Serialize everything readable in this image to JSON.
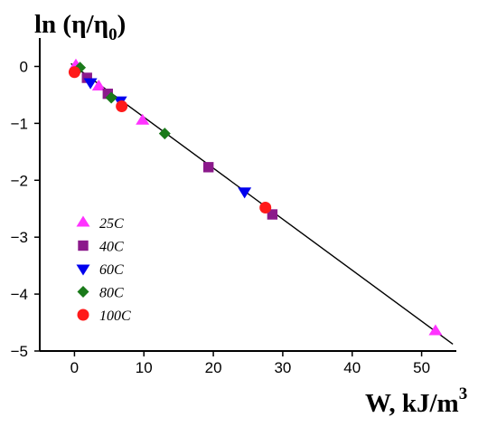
{
  "chart_data": {
    "type": "scatter",
    "title": "",
    "ylabel": {
      "base": "ln (η/η",
      "sub": "0",
      "close": ")"
    },
    "xlabel": {
      "base": "W, kJ/m",
      "sup": "3"
    },
    "xlim": [
      -5,
      55
    ],
    "ylim": [
      -5,
      0.5
    ],
    "xticks": [
      0,
      10,
      20,
      30,
      40,
      50
    ],
    "yticks": [
      0,
      -1,
      -2,
      -3,
      -4,
      -5
    ],
    "xtick_labels": [
      "0",
      "10",
      "20",
      "30",
      "40",
      "50"
    ],
    "ytick_labels": [
      "0",
      "−1",
      "−2",
      "−3",
      "−4",
      "−5"
    ],
    "grid": false,
    "legend_position": "left-middle",
    "fit_line": {
      "x": [
        -0.5,
        54.5
      ],
      "y": [
        0.05,
        -4.88
      ],
      "color": "#000000"
    },
    "series": [
      {
        "name": "25C",
        "marker": "triangle-up",
        "color": "#ff33ff",
        "points": [
          [
            0.2,
            0.02
          ],
          [
            3.5,
            -0.35
          ],
          [
            9.8,
            -0.95
          ],
          [
            52.0,
            -4.65
          ]
        ]
      },
      {
        "name": "40C",
        "marker": "square",
        "color": "#8b1a8b",
        "points": [
          [
            1.8,
            -0.2
          ],
          [
            4.8,
            -0.48
          ],
          [
            19.3,
            -1.77
          ],
          [
            28.5,
            -2.6
          ]
        ]
      },
      {
        "name": "60C",
        "marker": "triangle-down",
        "color": "#0000ee",
        "points": [
          [
            2.3,
            -0.28
          ],
          [
            6.6,
            -0.6
          ],
          [
            24.5,
            -2.2
          ]
        ]
      },
      {
        "name": "80C",
        "marker": "diamond",
        "color": "#1a7a1a",
        "points": [
          [
            0.8,
            -0.02
          ],
          [
            5.3,
            -0.55
          ],
          [
            13.0,
            -1.18
          ]
        ]
      },
      {
        "name": "100C",
        "marker": "circle",
        "color": "#ff1a1a",
        "points": [
          [
            0.0,
            -0.1
          ],
          [
            6.8,
            -0.7
          ],
          [
            27.5,
            -2.48
          ]
        ]
      }
    ]
  }
}
